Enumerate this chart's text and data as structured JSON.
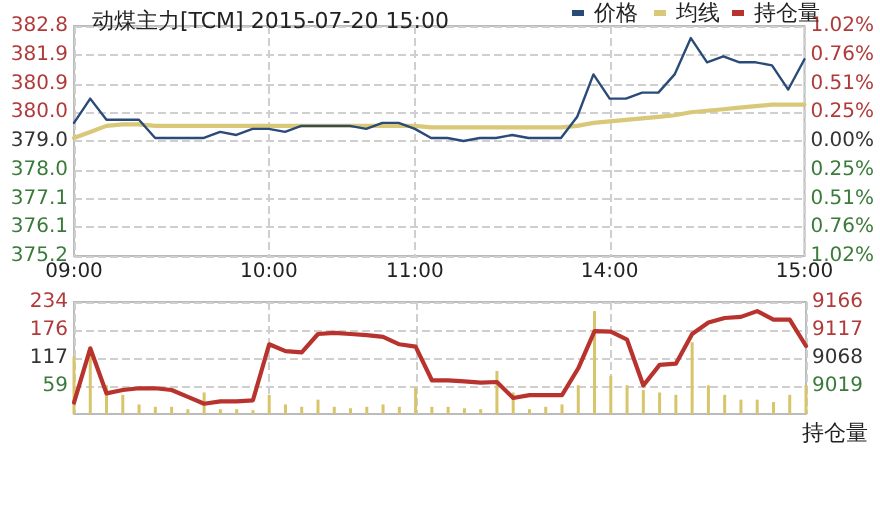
{
  "chart_data": [
    {
      "type": "line",
      "title": "动煤主力[TCM] 2015-07-20 15:00",
      "categories": [
        "09:00",
        null,
        null,
        null,
        null,
        null,
        null,
        null,
        null,
        null,
        null,
        null,
        "10:00",
        null,
        null,
        null,
        null,
        null,
        null,
        null,
        null,
        "11:00",
        null,
        null,
        null,
        null,
        null,
        null,
        null,
        null,
        null,
        null,
        null,
        "14:00",
        null,
        null,
        null,
        null,
        null,
        null,
        null,
        null,
        null,
        null,
        null,
        "15:00"
      ],
      "series": [
        {
          "name": "价格",
          "color": "#2a4a78",
          "values": [
            379.6,
            380.4,
            379.7,
            379.7,
            379.7,
            379.1,
            379.1,
            379.1,
            379.1,
            379.3,
            379.2,
            379.4,
            379.4,
            379.3,
            379.5,
            379.5,
            379.5,
            379.5,
            379.4,
            379.6,
            379.6,
            379.4,
            379.1,
            379.1,
            379.0,
            379.1,
            379.1,
            379.2,
            379.1,
            379.1,
            379.1,
            379.8,
            381.2,
            380.4,
            380.4,
            380.6,
            380.6,
            381.2,
            382.4,
            381.6,
            381.8,
            381.6,
            381.6,
            381.5,
            380.7,
            381.7
          ]
        },
        {
          "name": "均线",
          "color": "#d8c878",
          "values": [
            379.1,
            379.3,
            379.5,
            379.55,
            379.55,
            379.5,
            379.5,
            379.5,
            379.5,
            379.5,
            379.5,
            379.5,
            379.5,
            379.5,
            379.5,
            379.5,
            379.5,
            379.5,
            379.5,
            379.5,
            379.5,
            379.5,
            379.45,
            379.45,
            379.45,
            379.45,
            379.45,
            379.45,
            379.45,
            379.45,
            379.45,
            379.5,
            379.6,
            379.65,
            379.7,
            379.75,
            379.8,
            379.85,
            379.95,
            380.0,
            380.05,
            380.1,
            380.15,
            380.2,
            380.2,
            380.2
          ]
        }
      ],
      "ylim": [
        375.2,
        382.8
      ],
      "yticks": [
        {
          "value": 375.2,
          "label": "375.2"
        },
        {
          "value": 376.15,
          "label": "376.1"
        },
        {
          "value": 377.1,
          "label": "377.1"
        },
        {
          "value": 378.05,
          "label": "378.0"
        },
        {
          "value": 379.0,
          "label": "379.0"
        },
        {
          "value": 379.95,
          "label": "380.0"
        },
        {
          "value": 380.9,
          "label": "380.9"
        },
        {
          "value": 381.85,
          "label": "381.9"
        },
        {
          "value": 382.8,
          "label": "382.8"
        }
      ],
      "y2lim": [
        -1.02,
        1.02
      ],
      "y2ticks": [
        {
          "value": -1.02,
          "label": "1.02%"
        },
        {
          "value": -0.765,
          "label": "0.76%"
        },
        {
          "value": -0.51,
          "label": "0.51%"
        },
        {
          "value": -0.255,
          "label": "0.25%"
        },
        {
          "value": 0,
          "label": "0.00%"
        },
        {
          "value": 0.255,
          "label": "0.25%"
        },
        {
          "value": 0.51,
          "label": "0.51%"
        },
        {
          "value": 0.765,
          "label": "0.76%"
        },
        {
          "value": 1.02,
          "label": "1.02%"
        }
      ],
      "grid": true,
      "legend": "top right",
      "marker": "none",
      "line_style": "solid"
    },
    {
      "type": "bar",
      "y2label": "持仓量",
      "categories": [
        null,
        null,
        null,
        null,
        null,
        null,
        null,
        null,
        null,
        null,
        null,
        null,
        null,
        null,
        null,
        null,
        null,
        null,
        null,
        null,
        null,
        null,
        null,
        null,
        null,
        null,
        null,
        null,
        null,
        null,
        null,
        null,
        null,
        null,
        null,
        null,
        null,
        null,
        null,
        null,
        null,
        null,
        null,
        null,
        null,
        null
      ],
      "series": [
        {
          "color": "#d8c46a",
          "values": [
            120,
            140,
            60,
            40,
            20,
            15,
            15,
            10,
            45,
            10,
            10,
            8,
            40,
            20,
            15,
            30,
            15,
            12,
            15,
            20,
            15,
            55,
            15,
            15,
            12,
            10,
            90,
            45,
            10,
            15,
            20,
            60,
            215,
            80,
            60,
            50,
            45,
            40,
            150,
            60,
            40,
            30,
            30,
            25,
            40,
            60
          ]
        },
        {
          "name": "持仓量",
          "type": "line",
          "axis": "y2",
          "color": "#b8322e",
          "values": [
            8990,
            9085,
            9006,
            9012,
            9015,
            9015,
            9012,
            9000,
            8988,
            8992,
            8992,
            8994,
            9092,
            9080,
            9078,
            9110,
            9112,
            9110,
            9108,
            9105,
            9092,
            9088,
            9029,
            9029,
            9027,
            9025,
            9026,
            8998,
            9003,
            9003,
            9003,
            9050,
            9115,
            9114,
            9100,
            9020,
            9056,
            9058,
            9110,
            9130,
            9138,
            9140,
            9150,
            9135,
            9135,
            9089
          ]
        }
      ],
      "ylim": [
        0,
        234
      ],
      "yticks": [
        {
          "value": 58.5,
          "label": "59"
        },
        {
          "value": 117,
          "label": "117"
        },
        {
          "value": 175.5,
          "label": "176"
        },
        {
          "value": 234,
          "label": "234"
        }
      ],
      "y2lim": [
        8970,
        9166
      ],
      "y2ticks": [
        9019,
        9068,
        9117,
        9166
      ],
      "tick_labels": "y",
      "grid": true,
      "legend": "top right",
      "marker": "none",
      "line_style": "solid"
    }
  ]
}
